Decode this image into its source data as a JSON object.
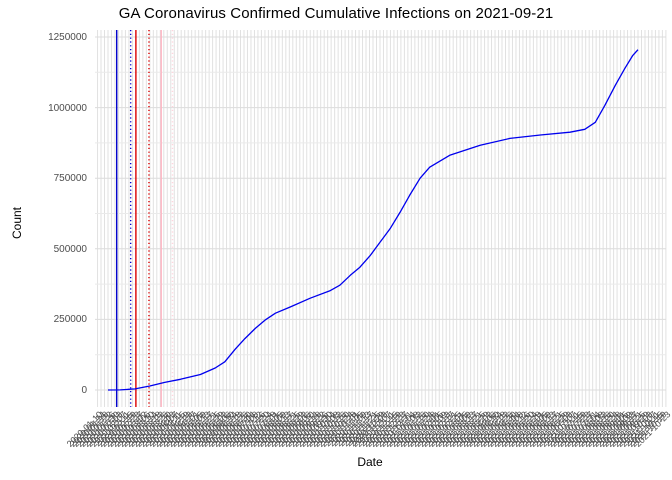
{
  "title": "GA Coronavirus Confirmed Cumulative Infections on 2021-09-21",
  "colors": {
    "series_line": "#0000EE",
    "vline_blue": "#0000CC",
    "vline_red": "#DD0000",
    "vline_pink": "#FFB3C1",
    "vline_pink_light": "#FFD4DC",
    "grid_major": "#DCDCDC",
    "grid_minor": "#EAEAEA",
    "grid_vertical": "#E1E1E1",
    "axis_text": "#4D4D4D"
  },
  "chart_data": {
    "type": "line",
    "title": "GA Coronavirus Confirmed Cumulative Infections on 2021-09-21",
    "xlabel": "Date",
    "ylabel": "Count",
    "x_range": [
      "2020-01-22",
      "2021-09-21"
    ],
    "ylim": [
      0,
      1250000
    ],
    "y_ticks": [
      "0",
      "250000",
      "500000",
      "750000",
      "1000000",
      "1250000"
    ],
    "y_minor_ticks": [
      125000,
      375000,
      625000,
      875000,
      1125000
    ],
    "x_tick_start": "2020-01-10",
    "x_tick_interval_days": 4,
    "x_tick_count": 164,
    "grid": true,
    "legend_position": "none",
    "event_vlines": [
      {
        "date": "2020-02-01",
        "color": "vline_blue",
        "style": "solid"
      },
      {
        "date": "2020-02-17",
        "color": "vline_blue",
        "style": "dotted"
      },
      {
        "date": "2020-02-23",
        "color": "vline_red",
        "style": "solid"
      },
      {
        "date": "2020-03-09",
        "color": "vline_red",
        "style": "dotted"
      },
      {
        "date": "2020-03-23",
        "color": "vline_pink",
        "style": "solid"
      },
      {
        "date": "2020-04-05",
        "color": "vline_pink_light",
        "style": "dotted"
      }
    ],
    "series": [
      {
        "name": "Confirmed cumulative infections",
        "color": "#0000EE",
        "points": [
          [
            "2020-01-22",
            0
          ],
          [
            "2020-02-05",
            500
          ],
          [
            "2020-02-22",
            4000
          ],
          [
            "2020-03-10",
            14000
          ],
          [
            "2020-03-27",
            27000
          ],
          [
            "2020-04-14",
            38000
          ],
          [
            "2020-05-07",
            55000
          ],
          [
            "2020-05-24",
            78000
          ],
          [
            "2020-06-04",
            100000
          ],
          [
            "2020-06-16",
            145000
          ],
          [
            "2020-06-27",
            182000
          ],
          [
            "2020-07-09",
            218000
          ],
          [
            "2020-07-20",
            247000
          ],
          [
            "2020-08-01",
            272000
          ],
          [
            "2020-08-18",
            294000
          ],
          [
            "2020-09-10",
            325000
          ],
          [
            "2020-10-03",
            352000
          ],
          [
            "2020-10-14",
            371000
          ],
          [
            "2020-10-26",
            406000
          ],
          [
            "2020-11-06",
            435000
          ],
          [
            "2020-11-18",
            477000
          ],
          [
            "2020-11-29",
            523000
          ],
          [
            "2020-12-11",
            573000
          ],
          [
            "2020-12-22",
            629000
          ],
          [
            "2021-01-02",
            689000
          ],
          [
            "2021-01-14",
            750000
          ],
          [
            "2021-01-25",
            789000
          ],
          [
            "2021-02-17",
            831000
          ],
          [
            "2021-03-24",
            867000
          ],
          [
            "2021-04-27",
            891000
          ],
          [
            "2021-06-01",
            903000
          ],
          [
            "2021-07-05",
            913000
          ],
          [
            "2021-07-22",
            923000
          ],
          [
            "2021-08-03",
            948000
          ],
          [
            "2021-08-14",
            1008000
          ],
          [
            "2021-08-26",
            1079000
          ],
          [
            "2021-09-06",
            1139000
          ],
          [
            "2021-09-15",
            1185000
          ],
          [
            "2021-09-21",
            1205000
          ]
        ]
      }
    ]
  }
}
